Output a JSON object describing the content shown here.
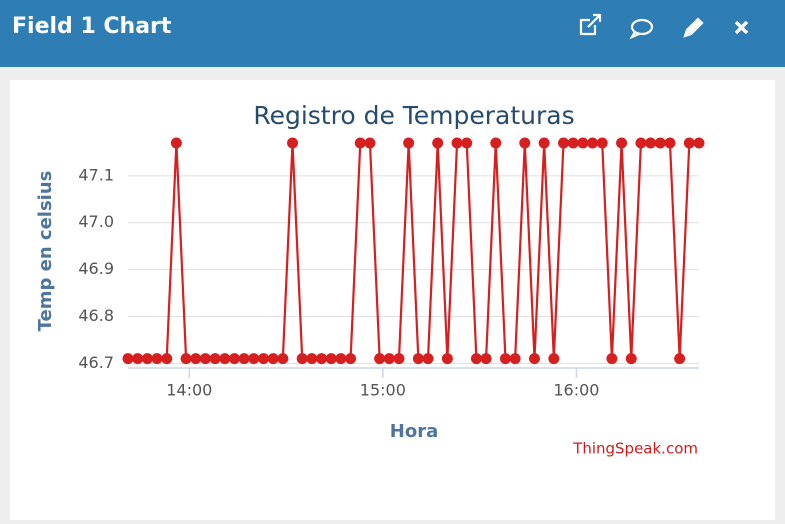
{
  "header": {
    "title": "Field 1 Chart"
  },
  "chart_data": {
    "type": "line",
    "title": "Registro de Temperaturas",
    "x_label": "Hora",
    "y_label": "Temp en celsius",
    "credit": "ThingSpeak.com",
    "x": [
      821,
      824,
      827,
      830,
      833,
      836,
      839,
      842,
      845,
      848,
      851,
      854,
      857,
      860,
      863,
      866,
      869,
      872,
      875,
      878,
      881,
      884,
      887,
      890,
      893,
      896,
      899,
      902,
      905,
      908,
      911,
      914,
      917,
      920,
      923,
      926,
      929,
      932,
      935,
      938,
      941,
      944,
      947,
      950,
      953,
      956,
      959,
      962,
      965,
      968,
      971,
      974,
      977,
      980,
      983,
      986,
      989,
      992,
      995,
      998
    ],
    "series": [
      {
        "name": "Field 1",
        "color": "#d62020",
        "values": [
          46.71,
          46.71,
          46.71,
          46.71,
          46.71,
          47.17,
          46.71,
          46.71,
          46.71,
          46.71,
          46.71,
          46.71,
          46.71,
          46.71,
          46.71,
          46.71,
          46.71,
          47.17,
          46.71,
          46.71,
          46.71,
          46.71,
          46.71,
          46.71,
          47.17,
          47.17,
          46.71,
          46.71,
          46.71,
          47.17,
          46.71,
          46.71,
          47.17,
          46.71,
          47.17,
          47.17,
          46.71,
          46.71,
          47.17,
          46.71,
          46.71,
          47.17,
          46.71,
          47.17,
          46.71,
          47.17,
          47.17,
          47.17,
          47.17,
          47.17,
          46.71,
          47.17,
          46.71,
          47.17,
          47.17,
          47.17,
          47.17,
          46.71,
          47.17,
          47.17
        ]
      }
    ],
    "xlim": [
      821,
      998
    ],
    "xticks": [
      {
        "value": 840,
        "label": "14:00"
      },
      {
        "value": 900,
        "label": "15:00"
      },
      {
        "value": 960,
        "label": "16:00"
      }
    ],
    "ylim": [
      46.69,
      47.17
    ],
    "yticks": [
      46.7,
      46.8,
      46.9,
      {
        "value": 47,
        "label": "47.0"
      },
      47.1
    ],
    "grid": true
  }
}
